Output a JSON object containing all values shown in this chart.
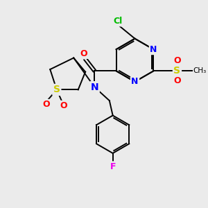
{
  "bg_color": "#ebebeb",
  "bond_color": "#000000",
  "atom_colors": {
    "Cl": "#00bb00",
    "N": "#0000ff",
    "O": "#ff0000",
    "S": "#cccc00",
    "F": "#ee00ee",
    "C": "#000000"
  }
}
